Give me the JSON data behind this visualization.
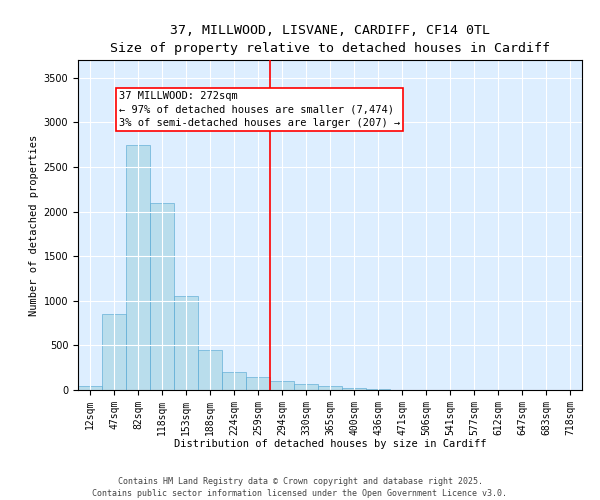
{
  "title_line1": "37, MILLWOOD, LISVANE, CARDIFF, CF14 0TL",
  "title_line2": "Size of property relative to detached houses in Cardiff",
  "xlabel": "Distribution of detached houses by size in Cardiff",
  "ylabel": "Number of detached properties",
  "bar_labels": [
    "12sqm",
    "47sqm",
    "82sqm",
    "118sqm",
    "153sqm",
    "188sqm",
    "224sqm",
    "259sqm",
    "294sqm",
    "330sqm",
    "365sqm",
    "400sqm",
    "436sqm",
    "471sqm",
    "506sqm",
    "541sqm",
    "577sqm",
    "612sqm",
    "647sqm",
    "683sqm",
    "718sqm"
  ],
  "bar_values": [
    50,
    850,
    2750,
    2100,
    1050,
    450,
    200,
    150,
    100,
    70,
    50,
    20,
    10,
    5,
    3,
    2,
    2,
    1,
    1,
    1,
    1
  ],
  "bar_color": "#add8e6",
  "bar_edgecolor": "#5baad4",
  "bar_alpha": 0.75,
  "vline_color": "red",
  "annotation_text": "37 MILLWOOD: 272sqm\n← 97% of detached houses are smaller (7,474)\n3% of semi-detached houses are larger (207) →",
  "ylim": [
    0,
    3700
  ],
  "yticks": [
    0,
    500,
    1000,
    1500,
    2000,
    2500,
    3000,
    3500
  ],
  "background_color": "#ddeeff",
  "footer_line1": "Contains HM Land Registry data © Crown copyright and database right 2025.",
  "footer_line2": "Contains public sector information licensed under the Open Government Licence v3.0.",
  "title_fontsize": 9.5,
  "subtitle_fontsize": 8.5,
  "axis_label_fontsize": 7.5,
  "tick_fontsize": 7,
  "annotation_fontsize": 7.5,
  "footer_fontsize": 6
}
